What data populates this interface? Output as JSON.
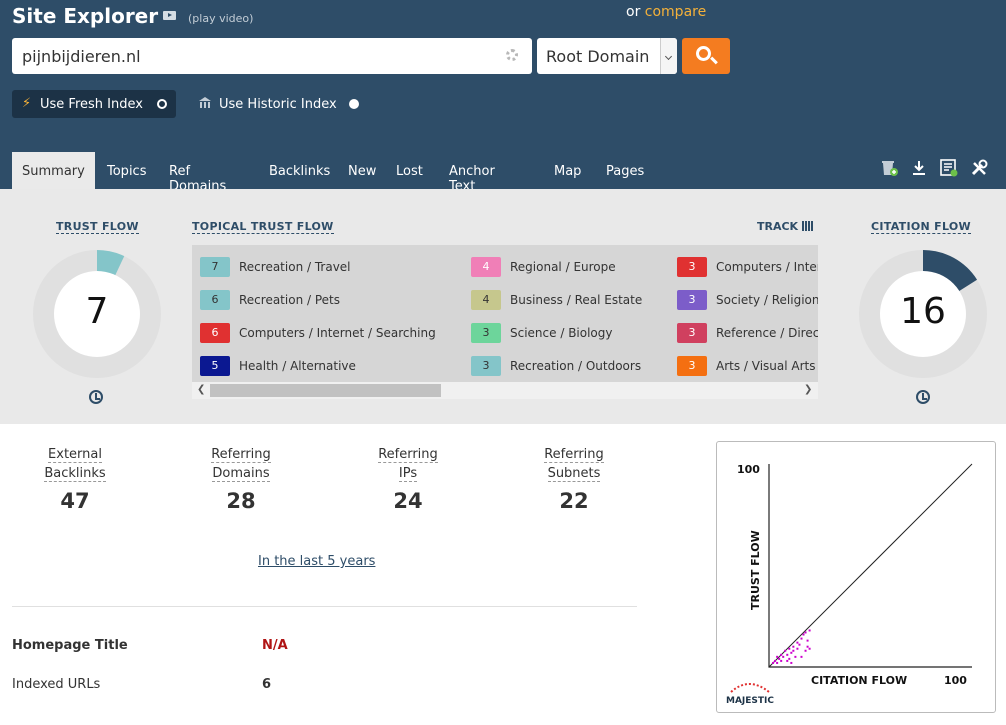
{
  "header": {
    "title": "Site Explorer",
    "play_video": "(play video)",
    "or_text": "or",
    "compare_link": "compare"
  },
  "search": {
    "value": "pijnbijdieren.nl",
    "scope": "Root Domain"
  },
  "index": {
    "fresh_label": "Use Fresh Index",
    "historic_label": "Use Historic Index",
    "selected": "fresh"
  },
  "tabs": [
    "Summary",
    "Topics",
    "Ref Domains",
    "Backlinks",
    "New",
    "Lost",
    "Anchor Text",
    "Map",
    "Pages"
  ],
  "toolbar_icons": [
    "add-to-bucket-icon",
    "download-icon",
    "report-icon",
    "tools-icon"
  ],
  "trust_flow": {
    "label": "TRUST FLOW",
    "value": "7",
    "value_num": 7,
    "color": "#84c5c9"
  },
  "citation_flow": {
    "label": "CITATION FLOW",
    "value": "16",
    "value_num": 16,
    "color": "#2e4d68"
  },
  "topical": {
    "label": "TOPICAL TRUST FLOW",
    "track_label": "TRACK",
    "items": [
      {
        "score": "7",
        "topic": "Recreation / Travel",
        "color": "#84c5c9",
        "text_color": "#333333"
      },
      {
        "score": "6",
        "topic": "Recreation / Pets",
        "color": "#84c5c9",
        "text_color": "#333333"
      },
      {
        "score": "6",
        "topic": "Computers / Internet / Searching",
        "color": "#e03131",
        "text_color": "#ffffff"
      },
      {
        "score": "5",
        "topic": "Health / Alternative",
        "color": "#0b1891",
        "text_color": "#ffffff"
      },
      {
        "score": "4",
        "topic": "Regional / Europe",
        "color": "#f07fb7",
        "text_color": "#ffffff"
      },
      {
        "score": "4",
        "topic": "Business / Real Estate",
        "color": "#c6c78d",
        "text_color": "#333333"
      },
      {
        "score": "3",
        "topic": "Science / Biology",
        "color": "#6dd59b",
        "text_color": "#333333"
      },
      {
        "score": "3",
        "topic": "Recreation / Outdoors",
        "color": "#84c5c9",
        "text_color": "#333333"
      },
      {
        "score": "3",
        "topic": "Computers / Inter",
        "color": "#e03131",
        "text_color": "#ffffff"
      },
      {
        "score": "3",
        "topic": "Society / Religion",
        "color": "#7c5dc9",
        "text_color": "#ffffff"
      },
      {
        "score": "3",
        "topic": "Reference / Direc",
        "color": "#d0405f",
        "text_color": "#ffffff"
      },
      {
        "score": "3",
        "topic": "Arts / Visual Arts",
        "color": "#f46f11",
        "text_color": "#ffffff"
      }
    ]
  },
  "stats": [
    {
      "line1": "External",
      "line2": "Backlinks",
      "value": "47"
    },
    {
      "line1": "Referring",
      "line2": "Domains",
      "value": "28"
    },
    {
      "line1": "Referring",
      "line2": "IPs",
      "value": "24"
    },
    {
      "line1": "Referring",
      "line2": "Subnets",
      "value": "22"
    }
  ],
  "period_link": "In the last 5 years",
  "details": {
    "homepage_title_label": "Homepage Title",
    "homepage_title_value": "N/A",
    "indexed_urls_label": "Indexed URLs",
    "indexed_urls_value": "6"
  },
  "chart_data": {
    "type": "scatter",
    "xlabel": "CITATION FLOW",
    "ylabel": "TRUST FLOW",
    "xlim": [
      0,
      100
    ],
    "ylim": [
      0,
      100
    ],
    "x_max_label": "100",
    "y_max_label": "100",
    "watermark": "MAJESTIC",
    "point_color": "#cc00cc",
    "points": [
      [
        2,
        2
      ],
      [
        3,
        3
      ],
      [
        4,
        2
      ],
      [
        4,
        5
      ],
      [
        5,
        4
      ],
      [
        6,
        3
      ],
      [
        6,
        6
      ],
      [
        7,
        5
      ],
      [
        8,
        8
      ],
      [
        9,
        6
      ],
      [
        10,
        4
      ],
      [
        10,
        9
      ],
      [
        11,
        7
      ],
      [
        12,
        10
      ],
      [
        13,
        5
      ],
      [
        14,
        12
      ],
      [
        15,
        11
      ],
      [
        16,
        14
      ],
      [
        17,
        16
      ],
      [
        18,
        17
      ],
      [
        19,
        13
      ],
      [
        20,
        18
      ],
      [
        9,
        3
      ],
      [
        11,
        2
      ],
      [
        12,
        8
      ],
      [
        14,
        9
      ],
      [
        16,
        5
      ],
      [
        18,
        8
      ],
      [
        19,
        10
      ],
      [
        20,
        9
      ]
    ]
  }
}
